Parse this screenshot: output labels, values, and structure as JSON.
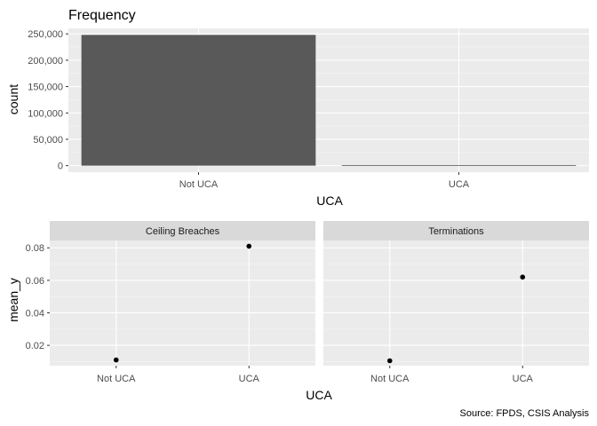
{
  "caption": "Source: FPDS, CSIS Analysis",
  "chart_data": [
    {
      "type": "bar",
      "title": "Frequency",
      "xlabel": "UCA",
      "ylabel": "count",
      "categories": [
        "Not UCA",
        "UCA"
      ],
      "values": [
        248000,
        900
      ],
      "ylim": [
        -12400,
        260400
      ],
      "yticks": [
        0,
        50000,
        100000,
        150000,
        200000,
        250000
      ],
      "ytick_labels": [
        "0",
        "50,000",
        "100,000",
        "150,000",
        "200,000",
        "250,000"
      ],
      "bar_color": "#595959",
      "panel_bg": "#ebebeb",
      "grid": true
    },
    {
      "type": "scatter",
      "xlabel": "UCA",
      "ylabel": "mean_y",
      "categories": [
        "Not UCA",
        "UCA"
      ],
      "ylim": [
        0.0075,
        0.0845
      ],
      "yticks": [
        0.02,
        0.04,
        0.06,
        0.08
      ],
      "ytick_labels": [
        "0.02",
        "0.04",
        "0.06",
        "0.08"
      ],
      "point_color": "#000000",
      "strip_bg": "#d9d9d9",
      "panel_bg": "#ebebeb",
      "grid": true,
      "facets": [
        {
          "name": "Ceiling Breaches",
          "values": [
            0.011,
            0.081
          ]
        },
        {
          "name": "Terminations",
          "values": [
            0.0105,
            0.062
          ]
        }
      ]
    }
  ]
}
